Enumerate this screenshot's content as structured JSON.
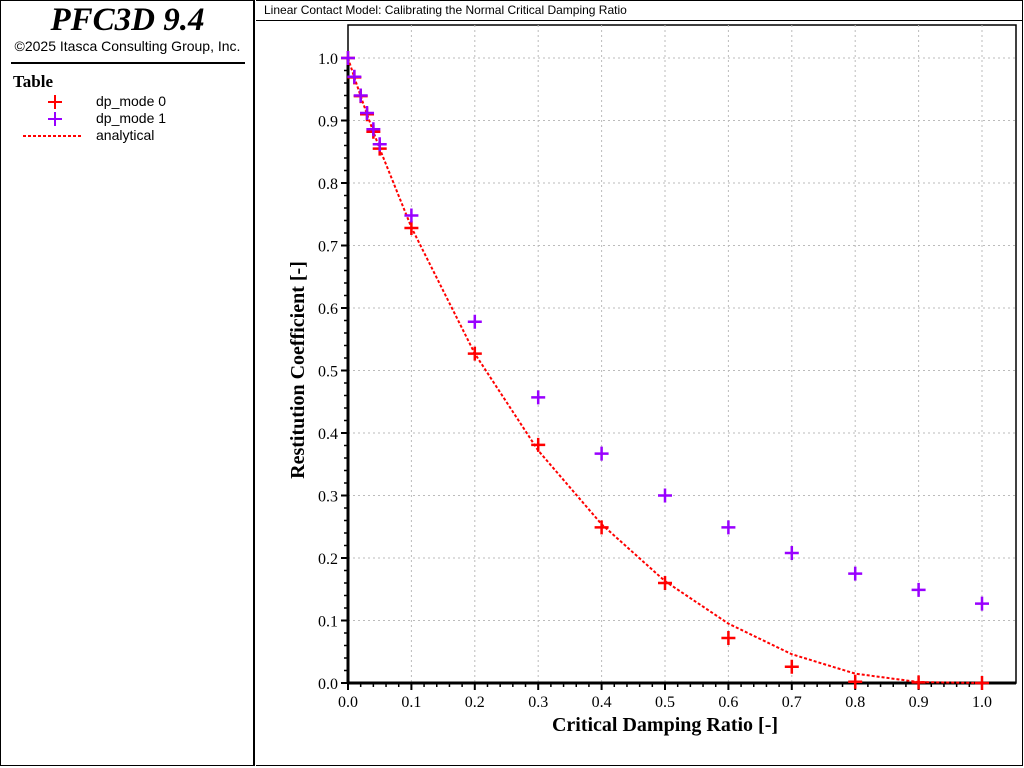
{
  "sidebar": {
    "app_title": "PFC3D 9.4",
    "copyright": "©2025 Itasca Consulting Group, Inc.",
    "legend_title": "Table",
    "legend": [
      {
        "label": "dp_mode 0",
        "marker": "plus",
        "color": "#ff0000"
      },
      {
        "label": "dp_mode 1",
        "marker": "plus",
        "color": "#9900ff"
      },
      {
        "label": "analytical",
        "marker": "dashed-line",
        "color": "#ff0000"
      }
    ]
  },
  "chart_data": {
    "type": "scatter",
    "title": "Linear Contact Model: Calibrating the Normal Critical Damping Ratio",
    "xlabel": "Critical Damping Ratio [-]",
    "ylabel": "Restitution Coefficient [-]",
    "xlim": [
      0,
      1
    ],
    "ylim": [
      0,
      1
    ],
    "xticks": [
      "0.0",
      "0.1",
      "0.2",
      "0.3",
      "0.4",
      "0.5",
      "0.6",
      "0.7",
      "0.8",
      "0.9",
      "1.0"
    ],
    "yticks": [
      "0.0",
      "0.1",
      "0.2",
      "0.3",
      "0.4",
      "0.5",
      "0.6",
      "0.7",
      "0.8",
      "0.9",
      "1.0"
    ],
    "grid": true,
    "legend_placement": "left-panel",
    "series": [
      {
        "name": "dp_mode 0",
        "style": "plus",
        "color": "#ff0000",
        "x": [
          0,
          0.01,
          0.02,
          0.03,
          0.04,
          0.05,
          0.1,
          0.2,
          0.3,
          0.4,
          0.5,
          0.6,
          0.7,
          0.8,
          0.9,
          1.0
        ],
        "y": [
          1.0,
          0.969,
          0.939,
          0.91,
          0.882,
          0.855,
          0.728,
          0.527,
          0.381,
          0.249,
          0.16,
          0.072,
          0.026,
          0.002,
          0.001,
          0.0
        ]
      },
      {
        "name": "dp_mode 1",
        "style": "plus",
        "color": "#9900ff",
        "x": [
          0,
          0.01,
          0.02,
          0.03,
          0.04,
          0.05,
          0.1,
          0.2,
          0.3,
          0.4,
          0.5,
          0.6,
          0.7,
          0.8,
          0.9,
          1.0
        ],
        "y": [
          1.0,
          0.97,
          0.94,
          0.912,
          0.886,
          0.862,
          0.748,
          0.578,
          0.457,
          0.367,
          0.3,
          0.249,
          0.208,
          0.175,
          0.149,
          0.127
        ]
      },
      {
        "name": "analytical",
        "style": "dashed-line",
        "color": "#ff0000",
        "x": [
          0,
          0.01,
          0.02,
          0.03,
          0.04,
          0.05,
          0.1,
          0.2,
          0.3,
          0.4,
          0.5,
          0.6,
          0.7,
          0.8,
          0.9,
          1.0
        ],
        "y": [
          1.0,
          0.969,
          0.939,
          0.91,
          0.882,
          0.855,
          0.729,
          0.527,
          0.372,
          0.254,
          0.163,
          0.095,
          0.046,
          0.015,
          0.0015,
          0.0
        ]
      }
    ]
  }
}
